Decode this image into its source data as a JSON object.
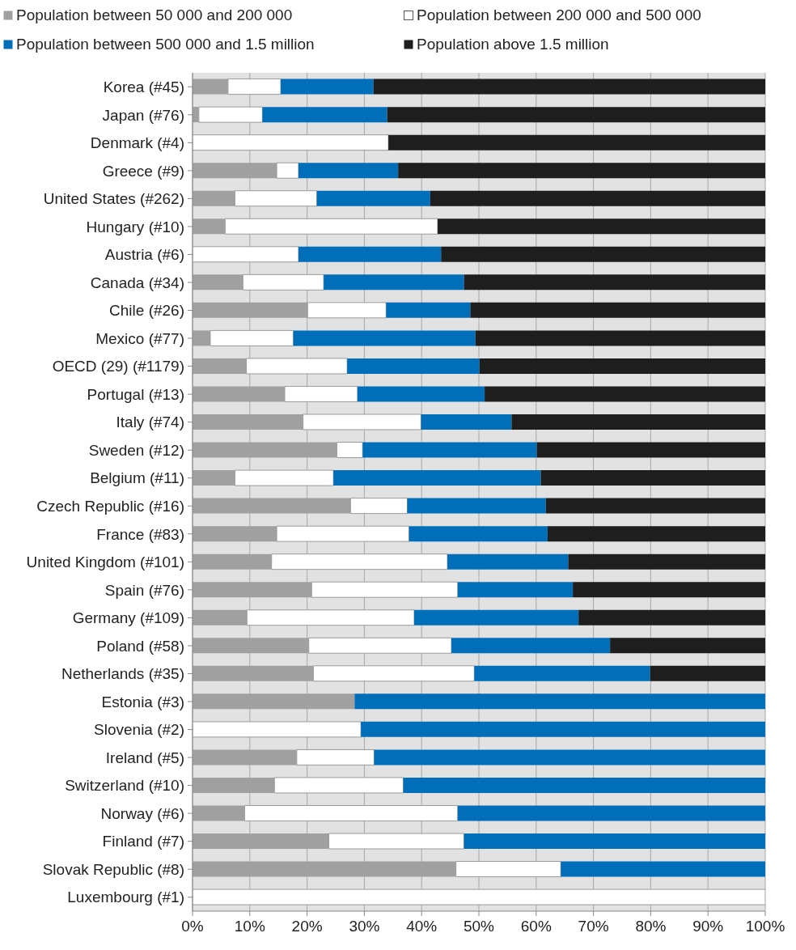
{
  "chart_data": {
    "type": "bar",
    "orientation": "horizontal",
    "stacked": true,
    "grid": "x",
    "legend": "top",
    "categories": [
      "Korea (#45)",
      "Japan (#76)",
      "Denmark (#4)",
      "Greece (#9)",
      "United States (#262)",
      "Hungary (#10)",
      "Austria (#6)",
      "Canada (#34)",
      "Chile (#26)",
      "Mexico (#77)",
      "OECD (29) (#1179)",
      "Portugal (#13)",
      "Italy (#74)",
      "Sweden (#12)",
      "Belgium (#11)",
      "Czech Republic (#16)",
      "France (#83)",
      "United Kingdom (#101)",
      "Spain (#76)",
      "Germany (#109)",
      "Poland (#58)",
      "Netherlands (#35)",
      "Estonia (#3)",
      "Slovenia (#2)",
      "Ireland (#5)",
      "Switzerland (#10)",
      "Norway (#6)",
      "Finland (#7)",
      "Slovak Republic (#8)",
      "Luxembourg (#1)"
    ],
    "series": [
      {
        "name": "Population between 50 000 and 200 000",
        "color": "#a0a0a0",
        "values": [
          6.2,
          1.1,
          0,
          14.7,
          7.4,
          5.7,
          0,
          8.8,
          20.1,
          3.1,
          9.4,
          16.1,
          19.3,
          25.2,
          7.4,
          27.6,
          14.7,
          13.8,
          20.8,
          9.5,
          20.3,
          21.1,
          28.3,
          0,
          18.2,
          14.3,
          9.1,
          23.8,
          46.0,
          0
        ]
      },
      {
        "name": "Population between 200 000 and 500 000",
        "color": "#ffffff",
        "values": [
          9.2,
          11.1,
          34.2,
          3.8,
          14.3,
          37.1,
          18.5,
          14.1,
          13.7,
          14.5,
          17.6,
          12.7,
          20.6,
          4.5,
          17.2,
          9.9,
          23.1,
          30.7,
          25.5,
          29.2,
          24.9,
          28.1,
          0,
          29.4,
          13.5,
          22.5,
          37.2,
          23.6,
          18.3,
          100
        ]
      },
      {
        "name": "Population between 500 000 and 1.5 million",
        "color": "#006eb8",
        "values": [
          16.2,
          21.8,
          0,
          17.4,
          19.8,
          0,
          24.9,
          24.5,
          14.7,
          31.8,
          23.1,
          22.2,
          15.8,
          30.4,
          36.2,
          24.2,
          24.2,
          21.1,
          20.1,
          28.7,
          27.7,
          30.7,
          71.7,
          70.6,
          68.3,
          63.2,
          53.7,
          52.6,
          35.7,
          0
        ]
      },
      {
        "name": "Population above 1.5 million",
        "color": "#1e1e1e",
        "values": [
          68.4,
          66.0,
          65.8,
          64.1,
          58.5,
          57.2,
          56.6,
          52.6,
          51.5,
          50.6,
          49.9,
          49.0,
          44.3,
          39.9,
          39.2,
          38.3,
          38.0,
          34.4,
          33.6,
          32.6,
          27.1,
          20.1,
          0,
          0,
          0,
          0,
          0,
          0,
          0,
          0
        ]
      }
    ],
    "xlim": [
      0,
      100
    ],
    "xticks": [
      {
        "value": 0,
        "label": "0%"
      },
      {
        "value": 10,
        "label": "10%"
      },
      {
        "value": 20,
        "label": "20%"
      },
      {
        "value": 30,
        "label": "30%"
      },
      {
        "value": 40,
        "label": "40%"
      },
      {
        "value": 50,
        "label": "50%"
      },
      {
        "value": 60,
        "label": "60%"
      },
      {
        "value": 70,
        "label": "70%"
      },
      {
        "value": 80,
        "label": "80%"
      },
      {
        "value": 90,
        "label": "90%"
      },
      {
        "value": 100,
        "label": "100%"
      }
    ]
  }
}
